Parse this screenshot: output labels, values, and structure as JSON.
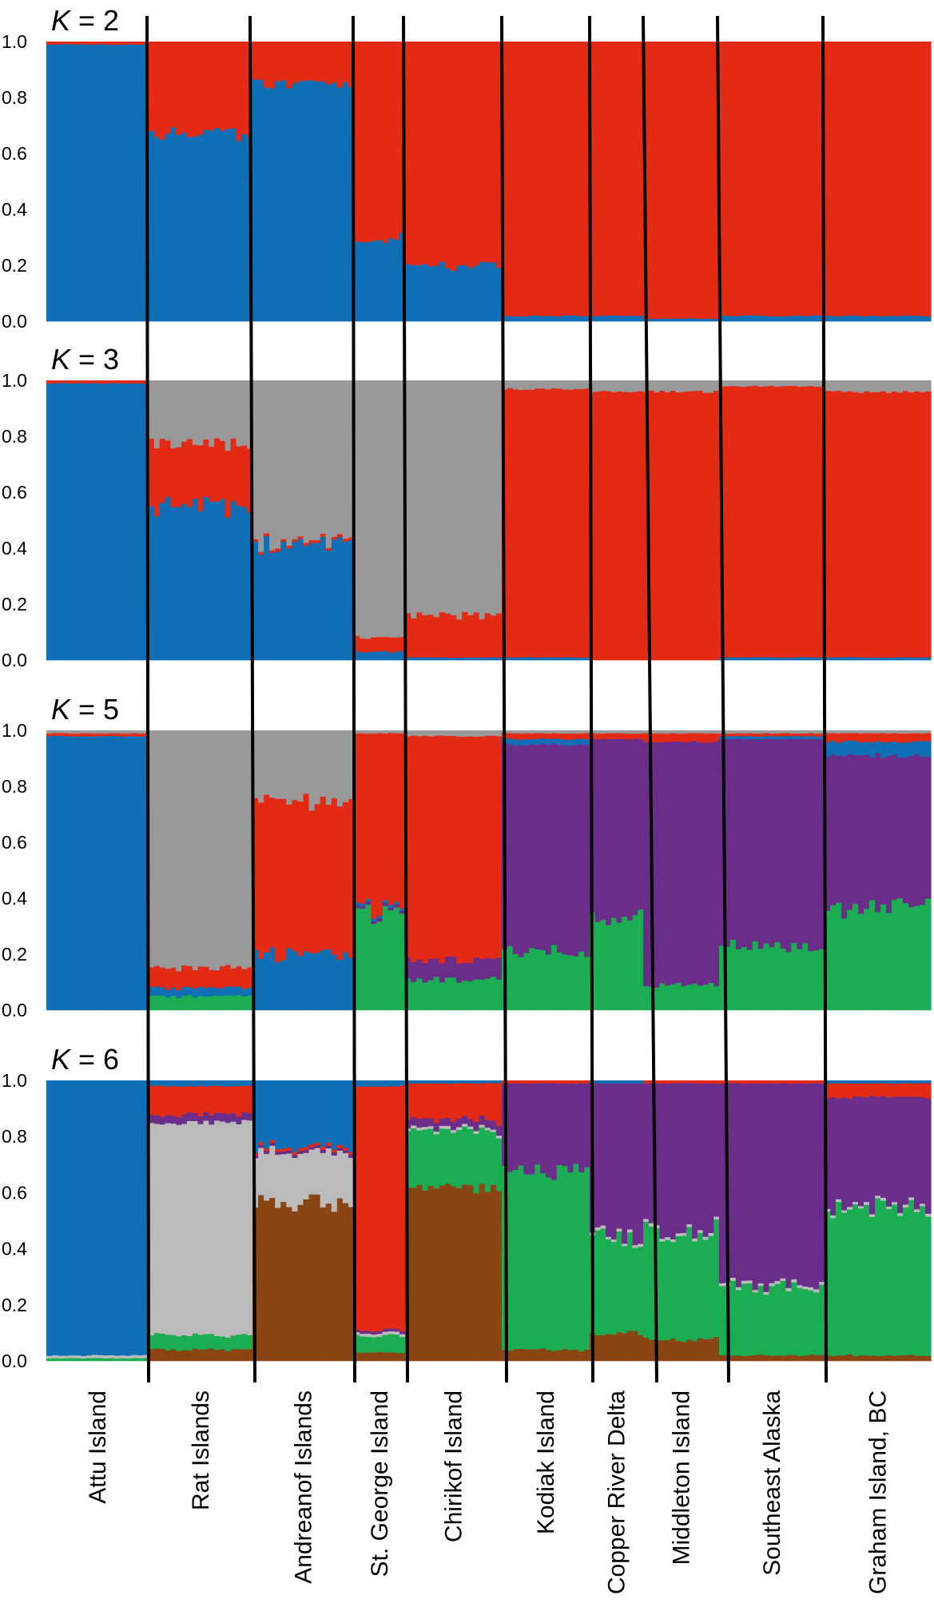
{
  "figure": {
    "panel_titles": [
      {
        "var": "K",
        "rest": " = 2"
      },
      {
        "var": "K",
        "rest": " = 3"
      },
      {
        "var": "K",
        "rest": " = 5"
      },
      {
        "var": "K",
        "rest": " = 6"
      }
    ],
    "y_ticks": [
      "0.0",
      "0.2",
      "0.4",
      "0.6",
      "0.8",
      "1.0"
    ],
    "populations": [
      "Attu Island",
      "Rat Islands",
      "Andreanof Islands",
      "St. George Island",
      "Chirikof Island",
      "Kodiak Island",
      "Copper River Delta",
      "Middleton Island",
      "Southeast Alaska",
      "Graham Island,  BC"
    ]
  },
  "chart_data": [
    {
      "type": "bar",
      "stacked": true,
      "panel": "K = 2",
      "ylim": [
        0,
        1
      ],
      "categories": [
        "Attu Island",
        "Rat Islands",
        "Andreanof Islands",
        "St. George Island",
        "Chirikof Island",
        "Kodiak Island",
        "Copper River Delta",
        "Middleton Island",
        "Southeast Alaska",
        "Graham Island,  BC"
      ],
      "colors": [
        "#0f6eb4",
        "#e32a14"
      ],
      "series": [
        {
          "values": [
            0.99,
            0.67,
            0.85,
            0.3,
            0.2,
            0.02,
            0.02,
            0.01,
            0.02,
            0.02
          ]
        },
        {
          "values": [
            0.01,
            0.33,
            0.15,
            0.7,
            0.8,
            0.98,
            0.98,
            0.99,
            0.98,
            0.98
          ]
        }
      ]
    },
    {
      "type": "bar",
      "stacked": true,
      "panel": "K = 3",
      "ylim": [
        0,
        1
      ],
      "categories": [
        "Attu Island",
        "Rat Islands",
        "Andreanof Islands",
        "St. George Island",
        "Chirikof Island",
        "Kodiak Island",
        "Copper River Delta",
        "Middleton Island",
        "Southeast Alaska",
        "Graham Island,  BC"
      ],
      "colors": [
        "#0f6eb4",
        "#e32a14",
        "#999999"
      ],
      "series": [
        {
          "values": [
            0.99,
            0.55,
            0.42,
            0.03,
            0.01,
            0.01,
            0.0,
            0.0,
            0.01,
            0.01
          ]
        },
        {
          "values": [
            0.01,
            0.22,
            0.01,
            0.05,
            0.15,
            0.96,
            0.96,
            0.96,
            0.97,
            0.95
          ]
        },
        {
          "values": [
            0.0,
            0.23,
            0.57,
            0.92,
            0.84,
            0.03,
            0.04,
            0.04,
            0.02,
            0.04
          ]
        }
      ]
    },
    {
      "type": "bar",
      "stacked": true,
      "panel": "K = 5",
      "ylim": [
        0,
        1
      ],
      "categories": [
        "Attu Island",
        "Rat Islands",
        "Andreanof Islands",
        "St. George Island",
        "Chirikof Island",
        "Kodiak Island",
        "Copper River Delta",
        "Middleton Island",
        "Southeast Alaska",
        "Graham Island,  BC"
      ],
      "colors": [
        "#1bad52",
        "#6a2e8a",
        "#0f6eb4",
        "#e32a14",
        "#999999"
      ],
      "series": [
        {
          "values": [
            0.0,
            0.05,
            0.0,
            0.35,
            0.11,
            0.21,
            0.33,
            0.09,
            0.23,
            0.37
          ]
        },
        {
          "values": [
            0.0,
            0.0,
            0.0,
            0.01,
            0.07,
            0.74,
            0.64,
            0.87,
            0.74,
            0.54
          ]
        },
        {
          "values": [
            0.98,
            0.03,
            0.2,
            0.01,
            0.0,
            0.02,
            0.0,
            0.0,
            0.01,
            0.05
          ]
        },
        {
          "values": [
            0.01,
            0.07,
            0.55,
            0.62,
            0.8,
            0.02,
            0.02,
            0.03,
            0.01,
            0.03
          ]
        },
        {
          "values": [
            0.01,
            0.85,
            0.25,
            0.01,
            0.02,
            0.01,
            0.01,
            0.01,
            0.01,
            0.01
          ]
        }
      ]
    },
    {
      "type": "bar",
      "stacked": true,
      "panel": "K = 6",
      "ylim": [
        0,
        1
      ],
      "categories": [
        "Attu Island",
        "Rat Islands",
        "Andreanof Islands",
        "St. George Island",
        "Chirikof Island",
        "Kodiak Island",
        "Copper River Delta",
        "Middleton Island",
        "Southeast Alaska",
        "Graham Island,  BC"
      ],
      "colors": [
        "#8b4513",
        "#1bad52",
        "#bbbbbb",
        "#6a2e8a",
        "#e32a14",
        "#0f6eb4"
      ],
      "series": [
        {
          "values": [
            0.0,
            0.04,
            0.56,
            0.03,
            0.62,
            0.04,
            0.1,
            0.08,
            0.02,
            0.02
          ]
        },
        {
          "values": [
            0.01,
            0.05,
            0.0,
            0.06,
            0.2,
            0.64,
            0.34,
            0.38,
            0.24,
            0.52
          ]
        },
        {
          "values": [
            0.01,
            0.76,
            0.18,
            0.01,
            0.01,
            0.0,
            0.01,
            0.01,
            0.01,
            0.01
          ]
        },
        {
          "values": [
            0.0,
            0.03,
            0.01,
            0.01,
            0.03,
            0.31,
            0.54,
            0.52,
            0.72,
            0.39
          ]
        },
        {
          "values": [
            0.0,
            0.1,
            0.01,
            0.87,
            0.13,
            0.01,
            0.0,
            0.01,
            0.01,
            0.05
          ]
        },
        {
          "values": [
            0.98,
            0.02,
            0.24,
            0.02,
            0.01,
            0.0,
            0.01,
            0.0,
            0.0,
            0.01
          ]
        }
      ]
    }
  ]
}
